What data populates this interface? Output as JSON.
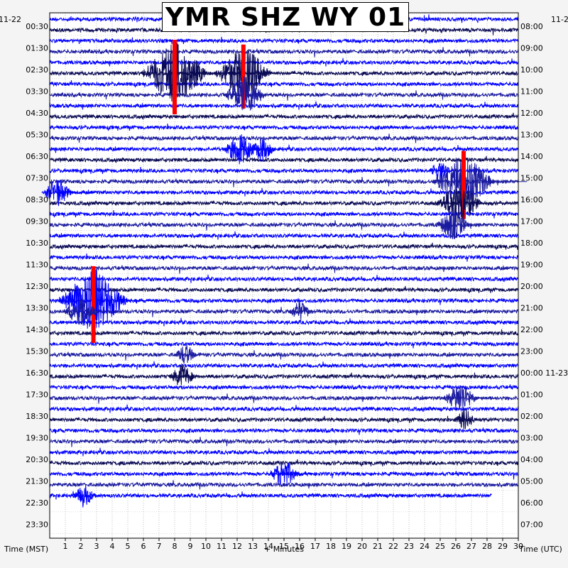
{
  "chart_data": {
    "type": "line",
    "title": "YMR SHZ WY 01",
    "xlabel": "+ Minutes",
    "ylabel_left": "Time (MST)",
    "ylabel_right": "Time (UTC)",
    "xlim": [
      0,
      30
    ],
    "x_ticks": [
      "1",
      "2",
      "3",
      "4",
      "5",
      "6",
      "7",
      "8",
      "9",
      "10",
      "11",
      "12",
      "13",
      "14",
      "15",
      "16",
      "17",
      "18",
      "19",
      "20",
      "21",
      "22",
      "23",
      "24",
      "25",
      "26",
      "27",
      "28",
      "29",
      "30"
    ],
    "left_date": "11-22",
    "right_date_top": "11-2",
    "left_times": [
      "00:30",
      "01:30",
      "02:30",
      "03:30",
      "04:30",
      "05:30",
      "06:30",
      "07:30",
      "08:30",
      "09:30",
      "10:30",
      "11:30",
      "12:30",
      "13:30",
      "14:30",
      "15:30",
      "16:30",
      "17:30",
      "18:30",
      "19:30",
      "20:30",
      "21:30",
      "22:30",
      "23:30"
    ],
    "right_times": [
      "08:00",
      "09:00",
      "10:00",
      "11:00",
      "12:00",
      "13:00",
      "14:00",
      "15:00",
      "16:00",
      "17:00",
      "18:00",
      "19:00",
      "20:00",
      "21:00",
      "22:00",
      "23:00",
      "00:00 11-23",
      "01:00",
      "02:00",
      "03:00",
      "04:00",
      "05:00",
      "06:00",
      "07:00"
    ],
    "trace_count": 45,
    "trace_colors": [
      "#0000ff",
      "#0a0a55",
      "#0000ff",
      "#1a1aa0"
    ],
    "clip_color": "#ff0000",
    "grid": true,
    "events": [
      {
        "trace": 5,
        "minute": 8.0,
        "amp": 3.5,
        "clip": true
      },
      {
        "trace": 5,
        "minute": 12.4,
        "amp": 3.0,
        "clip": true
      },
      {
        "trace": 7,
        "minute": 12.5,
        "amp": 2.2,
        "clip": false
      },
      {
        "trace": 12,
        "minute": 12.2,
        "amp": 1.8,
        "clip": false
      },
      {
        "trace": 12,
        "minute": 13.6,
        "amp": 1.4,
        "clip": false
      },
      {
        "trace": 14,
        "minute": 25.0,
        "amp": 1.2,
        "clip": false
      },
      {
        "trace": 15,
        "minute": 26.5,
        "amp": 3.2,
        "clip": true
      },
      {
        "trace": 16,
        "minute": 0.5,
        "amp": 1.6,
        "clip": false
      },
      {
        "trace": 17,
        "minute": 26.2,
        "amp": 2.4,
        "clip": false
      },
      {
        "trace": 19,
        "minute": 25.8,
        "amp": 1.8,
        "clip": false
      },
      {
        "trace": 26,
        "minute": 2.8,
        "amp": 3.6,
        "clip": true
      },
      {
        "trace": 27,
        "minute": 2.0,
        "amp": 1.8,
        "clip": false
      },
      {
        "trace": 27,
        "minute": 16.0,
        "amp": 1.2,
        "clip": false
      },
      {
        "trace": 31,
        "minute": 8.7,
        "amp": 1.2,
        "clip": false
      },
      {
        "trace": 33,
        "minute": 8.5,
        "amp": 1.4,
        "clip": false
      },
      {
        "trace": 35,
        "minute": 26.3,
        "amp": 1.8,
        "clip": false
      },
      {
        "trace": 37,
        "minute": 26.6,
        "amp": 1.2,
        "clip": false
      },
      {
        "trace": 42,
        "minute": 15.0,
        "amp": 1.6,
        "clip": false
      },
      {
        "trace": 44,
        "minute": 2.2,
        "amp": 1.3,
        "clip": false
      }
    ]
  }
}
